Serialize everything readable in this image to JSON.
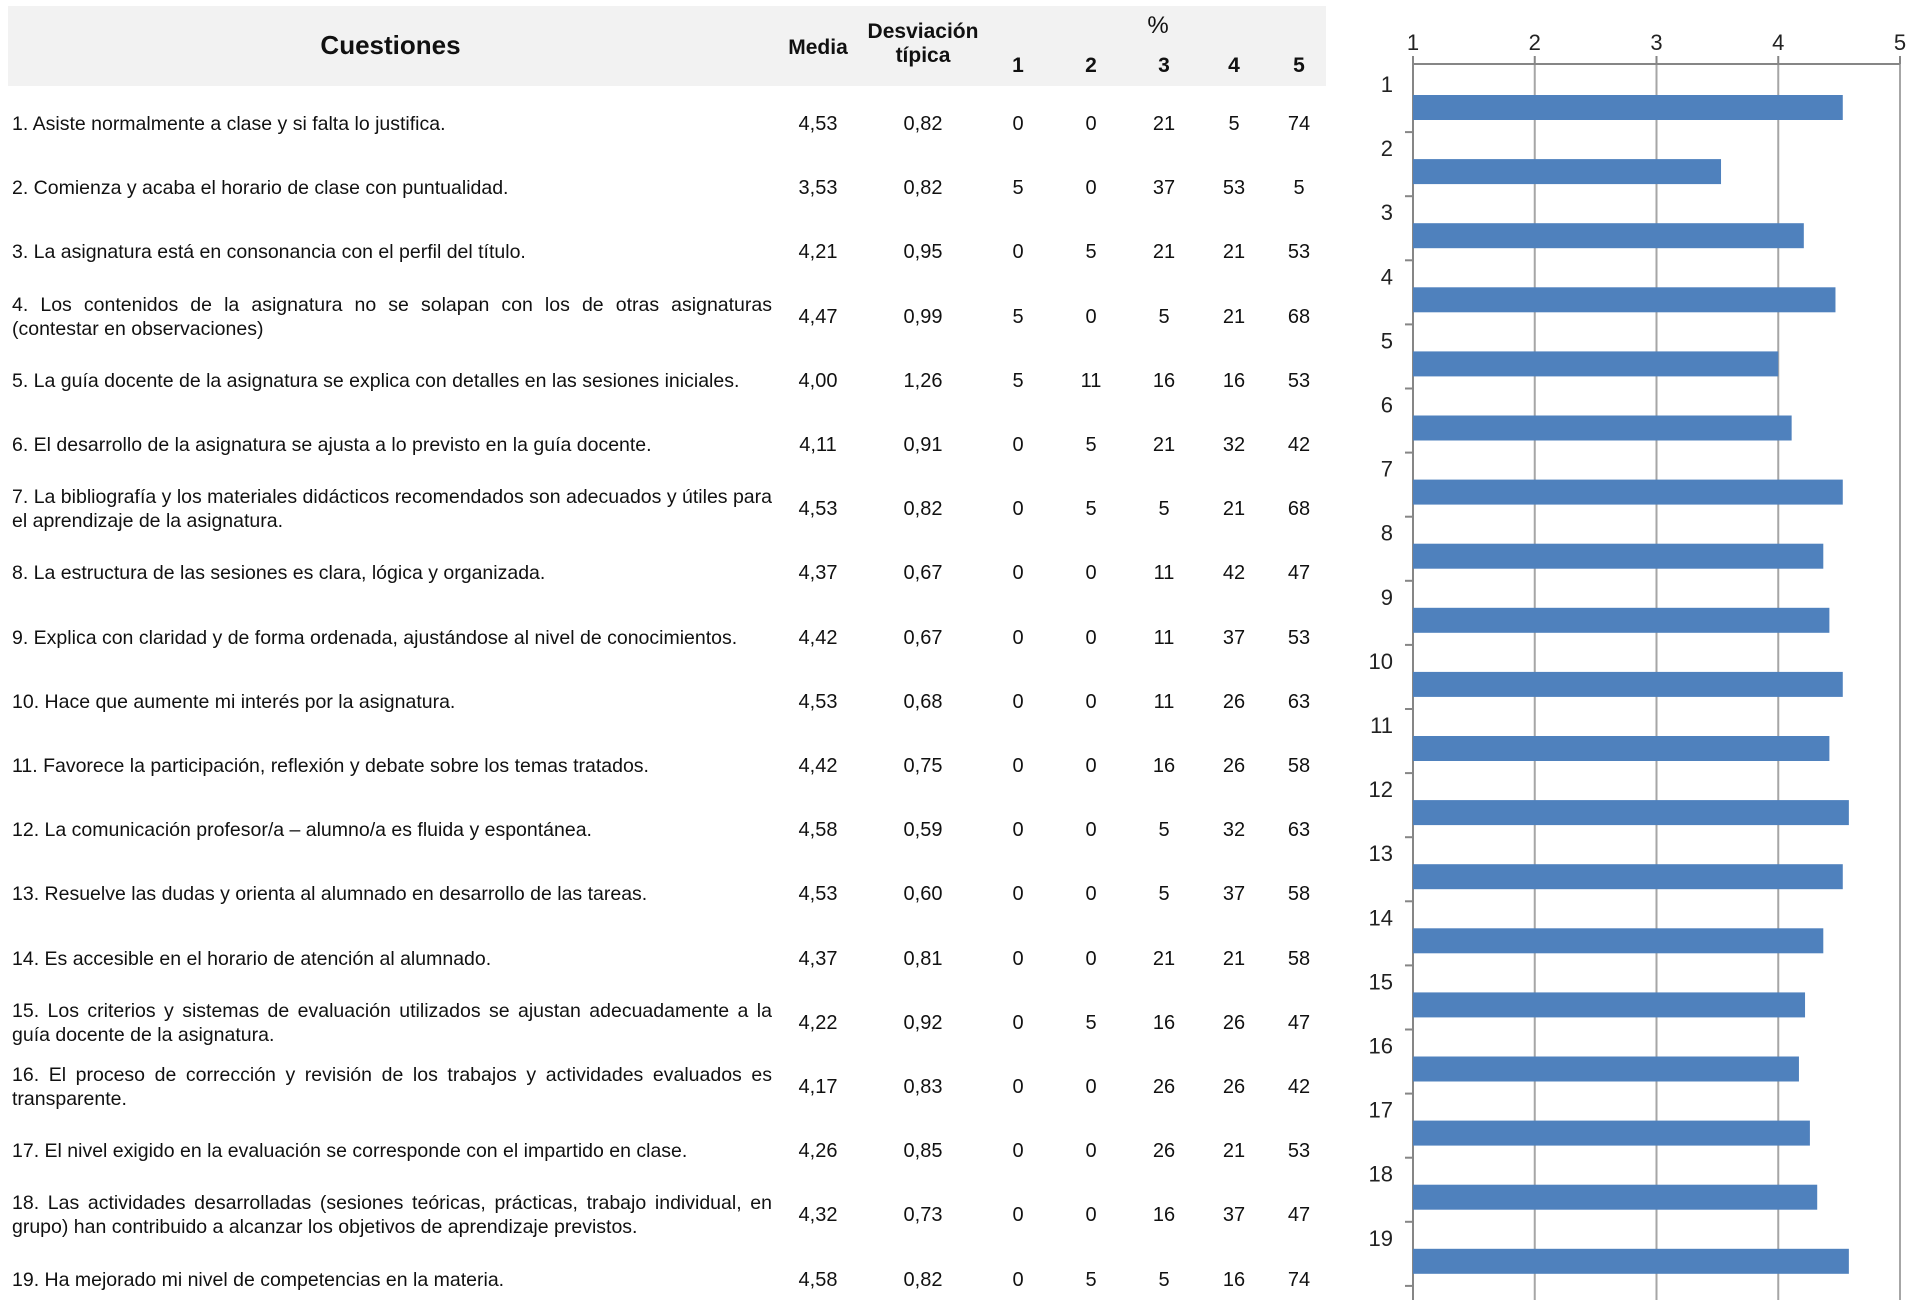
{
  "table": {
    "headers": {
      "question": "Cuestiones",
      "media": "Media",
      "desviacion_line1": "Desviación",
      "desviacion_line2": "típica",
      "percent": "%",
      "levels": [
        "1",
        "2",
        "3",
        "4",
        "5"
      ]
    },
    "rows": [
      {
        "question": "1. Asiste normalmente a clase y si falta lo justifica.",
        "media": "4,53",
        "desv": "0,82",
        "pct": [
          "0",
          "0",
          "21",
          "5",
          "74"
        ]
      },
      {
        "question": "2. Comienza y acaba el horario de clase con puntualidad.",
        "media": "3,53",
        "desv": "0,82",
        "pct": [
          "5",
          "0",
          "37",
          "53",
          "5"
        ]
      },
      {
        "question": "3. La asignatura está en consonancia con el perfil del título.",
        "media": "4,21",
        "desv": "0,95",
        "pct": [
          "0",
          "5",
          "21",
          "21",
          "53"
        ]
      },
      {
        "question": "4. Los contenidos de la asignatura no se solapan con los de otras asignaturas (contestar en observaciones)",
        "media": "4,47",
        "desv": "0,99",
        "pct": [
          "5",
          "0",
          "5",
          "21",
          "68"
        ]
      },
      {
        "question": "5. La guía docente de la asignatura  se explica con detalles en las sesiones iniciales.",
        "media": "4,00",
        "desv": "1,26",
        "pct": [
          "5",
          "11",
          "16",
          "16",
          "53"
        ]
      },
      {
        "question": "6. El desarrollo de la asignatura se ajusta a lo previsto en la guía docente.",
        "media": "4,11",
        "desv": "0,91",
        "pct": [
          "0",
          "5",
          "21",
          "32",
          "42"
        ]
      },
      {
        "question": "7. La bibliografía y los materiales didácticos recomendados son adecuados y útiles para el aprendizaje de la asignatura.",
        "media": "4,53",
        "desv": "0,82",
        "pct": [
          "0",
          "5",
          "5",
          "21",
          "68"
        ]
      },
      {
        "question": "8. La estructura de las sesiones es clara, lógica y organizada.",
        "media": "4,37",
        "desv": "0,67",
        "pct": [
          "0",
          "0",
          "11",
          "42",
          "47"
        ]
      },
      {
        "question": "9. Explica con claridad y de forma ordenada, ajustándose al nivel de conocimientos.",
        "media": "4,42",
        "desv": "0,67",
        "pct": [
          "0",
          "0",
          "11",
          "37",
          "53"
        ]
      },
      {
        "question": "10. Hace que aumente mi interés por la asignatura.",
        "media": "4,53",
        "desv": "0,68",
        "pct": [
          "0",
          "0",
          "11",
          "26",
          "63"
        ]
      },
      {
        "question": "11. Favorece la participación, reflexión y debate sobre los temas tratados.",
        "media": "4,42",
        "desv": "0,75",
        "pct": [
          "0",
          "0",
          "16",
          "26",
          "58"
        ]
      },
      {
        "question": "12. La comunicación profesor/a – alumno/a es fluida y espontánea.",
        "media": "4,58",
        "desv": "0,59",
        "pct": [
          "0",
          "0",
          "5",
          "32",
          "63"
        ]
      },
      {
        "question": "13. Resuelve las dudas y orienta al alumnado en desarrollo de las tareas.",
        "media": "4,53",
        "desv": "0,60",
        "pct": [
          "0",
          "0",
          "5",
          "37",
          "58"
        ]
      },
      {
        "question": "14. Es accesible en el horario de atención al alumnado.",
        "media": "4,37",
        "desv": "0,81",
        "pct": [
          "0",
          "0",
          "21",
          "21",
          "58"
        ]
      },
      {
        "question": "15.  Los criterios y sistemas de evaluación utilizados se ajustan adecuadamente a la guía docente de la asignatura.",
        "media": "4,22",
        "desv": "0,92",
        "pct": [
          "0",
          "5",
          "16",
          "26",
          "47"
        ]
      },
      {
        "question": "16. El proceso de corrección y revisión de los trabajos y actividades evaluados es transparente.",
        "media": "4,17",
        "desv": "0,83",
        "pct": [
          "0",
          "0",
          "26",
          "26",
          "42"
        ]
      },
      {
        "question": "17. El nivel exigido en la evaluación se corresponde con el impartido en clase.",
        "media": "4,26",
        "desv": "0,85",
        "pct": [
          "0",
          "0",
          "26",
          "21",
          "53"
        ]
      },
      {
        "question": "18. Las actividades desarrolladas (sesiones teóricas, prácticas, trabajo individual, en grupo) han contribuido a alcanzar los objetivos de aprendizaje previstos.",
        "media": "4,32",
        "desv": "0,73",
        "pct": [
          "0",
          "0",
          "16",
          "37",
          "47"
        ]
      },
      {
        "question": "19. Ha mejorado mi nivel de competencias en la materia.",
        "media": "4,58",
        "desv": "0,82",
        "pct": [
          "0",
          "5",
          "5",
          "16",
          "74"
        ]
      }
    ]
  },
  "chart_data": {
    "type": "bar",
    "orientation": "horizontal",
    "categories": [
      "1",
      "2",
      "3",
      "4",
      "5",
      "6",
      "7",
      "8",
      "9",
      "10",
      "11",
      "12",
      "13",
      "14",
      "15",
      "16",
      "17",
      "18",
      "19"
    ],
    "values": [
      4.53,
      3.53,
      4.21,
      4.47,
      4.0,
      4.11,
      4.53,
      4.37,
      4.42,
      4.53,
      4.42,
      4.58,
      4.53,
      4.37,
      4.22,
      4.17,
      4.26,
      4.32,
      4.58
    ],
    "xticks": [
      "1",
      "2",
      "3",
      "4",
      "5"
    ],
    "xlim": [
      1,
      5
    ],
    "x_axis_position": "top",
    "grid": true,
    "bar_color": "#4f81bd",
    "title": "",
    "xlabel": "",
    "ylabel": ""
  }
}
